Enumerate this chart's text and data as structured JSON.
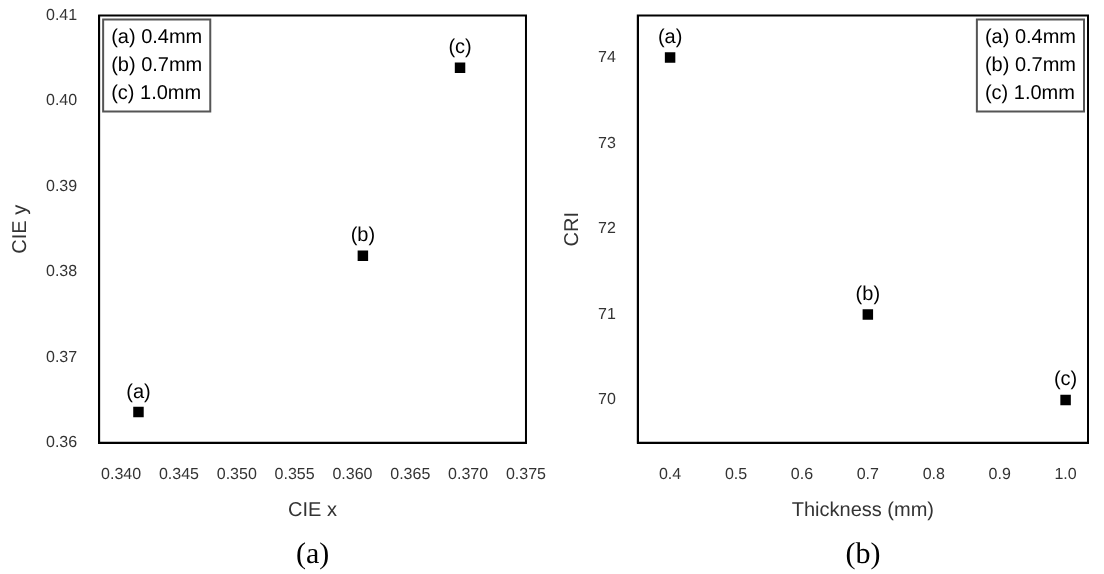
{
  "chart_data": [
    {
      "type": "scatter",
      "title": "(a)",
      "xlabel": "CIE x",
      "ylabel": "CIE y",
      "x": [
        0.3415,
        0.3609,
        0.3693
      ],
      "values": [
        0.3636,
        0.3819,
        0.4039
      ],
      "color": "#000000",
      "marker": "square",
      "xlim": [
        0.3381,
        0.375
      ],
      "xticks": [
        {
          "value": 0.34,
          "label": "0.340"
        },
        {
          "value": 0.345,
          "label": "0.345"
        },
        {
          "value": 0.35,
          "label": "0.350"
        },
        {
          "value": 0.355,
          "label": "0.355"
        },
        {
          "value": 0.36,
          "label": "0.360"
        },
        {
          "value": 0.365,
          "label": "0.365"
        },
        {
          "value": 0.37,
          "label": "0.370"
        },
        {
          "value": 0.375,
          "label": "0.375"
        }
      ],
      "ylim": [
        0.36,
        0.41
      ],
      "yticks": [
        {
          "value": 0.36,
          "label": "0.36"
        },
        {
          "value": 0.37,
          "label": "0.37"
        },
        {
          "value": 0.38,
          "label": "0.38"
        },
        {
          "value": 0.39,
          "label": "0.39"
        },
        {
          "value": 0.4,
          "label": "0.40"
        },
        {
          "value": 0.41,
          "label": "0.41"
        }
      ],
      "annotations": [
        {
          "text": "(a)",
          "x": 0.3415,
          "y": 0.3636
        },
        {
          "text": "(b)",
          "x": 0.3609,
          "y": 0.3819
        },
        {
          "text": "(c)",
          "x": 0.3693,
          "y": 0.4039
        },
        "(a) 0.4mm",
        "(b) 0.7mm",
        "(c) 1.0mm"
      ]
    },
    {
      "type": "scatter",
      "title": "(b)",
      "xlabel": "Thickness (mm)",
      "ylabel": "CRI",
      "x": [
        0.4,
        0.7,
        1.0
      ],
      "values": [
        74,
        71,
        70
      ],
      "color": "#000000",
      "marker": "square",
      "xlim": [
        0.351,
        1.034
      ],
      "xticks": [
        0.4,
        0.5,
        0.6,
        0.7,
        0.8,
        0.9,
        {
          "value": 1.0,
          "label": "1.0"
        }
      ],
      "ylim": [
        69.5,
        74.49
      ],
      "yticks": [
        70,
        71,
        72,
        73,
        74
      ],
      "annotations": [
        {
          "text": "(a)",
          "x": 0.4,
          "y": 74
        },
        {
          "text": "(b)",
          "x": 0.7,
          "y": 71
        },
        {
          "text": "(c)",
          "x": 1.0,
          "y": 70
        },
        "(a) 0.4mm",
        "(b) 0.7mm",
        "(c) 1.0mm"
      ]
    }
  ]
}
